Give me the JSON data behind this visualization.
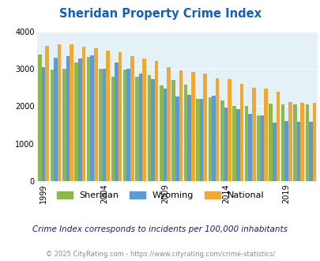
{
  "title": "Sheridan Property Crime Index",
  "subtitle": "Crime Index corresponds to incidents per 100,000 inhabitants",
  "footer": "© 2025 CityRating.com - https://www.cityrating.com/crime-statistics/",
  "years": [
    1999,
    2000,
    2001,
    2002,
    2003,
    2004,
    2005,
    2006,
    2007,
    2008,
    2009,
    2010,
    2011,
    2012,
    2013,
    2014,
    2015,
    2016,
    2017,
    2018,
    2019,
    2020,
    2021
  ],
  "sheridan": [
    3380,
    2980,
    3000,
    3170,
    3320,
    3000,
    2780,
    2990,
    2800,
    2830,
    2550,
    2700,
    2580,
    2200,
    2250,
    2150,
    2000,
    2000,
    1760,
    2080,
    2060,
    2050,
    2050
  ],
  "wyoming": [
    3040,
    3290,
    3330,
    3270,
    3360,
    3010,
    3160,
    3000,
    2870,
    2730,
    2480,
    2260,
    2310,
    2200,
    2280,
    1960,
    1920,
    1800,
    1760,
    1570,
    1600,
    1580,
    1580
  ],
  "national": [
    3620,
    3650,
    3650,
    3600,
    3540,
    3490,
    3440,
    3340,
    3280,
    3210,
    3040,
    2960,
    2920,
    2870,
    2740,
    2730,
    2610,
    2500,
    2470,
    2390,
    2110,
    2100,
    2100
  ],
  "bar_colors": {
    "sheridan": "#8db84a",
    "wyoming": "#5b9bd5",
    "national": "#f0a830"
  },
  "plot_bg_color": "#e4f1f7",
  "title_color": "#1060c0",
  "subtitle_color": "#1a1a6e",
  "footer_color": "#8888aa",
  "ylim": [
    0,
    4000
  ],
  "yticks": [
    0,
    1000,
    2000,
    3000,
    4000
  ],
  "xtick_years": [
    1999,
    2004,
    2009,
    2014,
    2019
  ],
  "legend_labels": [
    "Sheridan",
    "Wyoming",
    "National"
  ]
}
